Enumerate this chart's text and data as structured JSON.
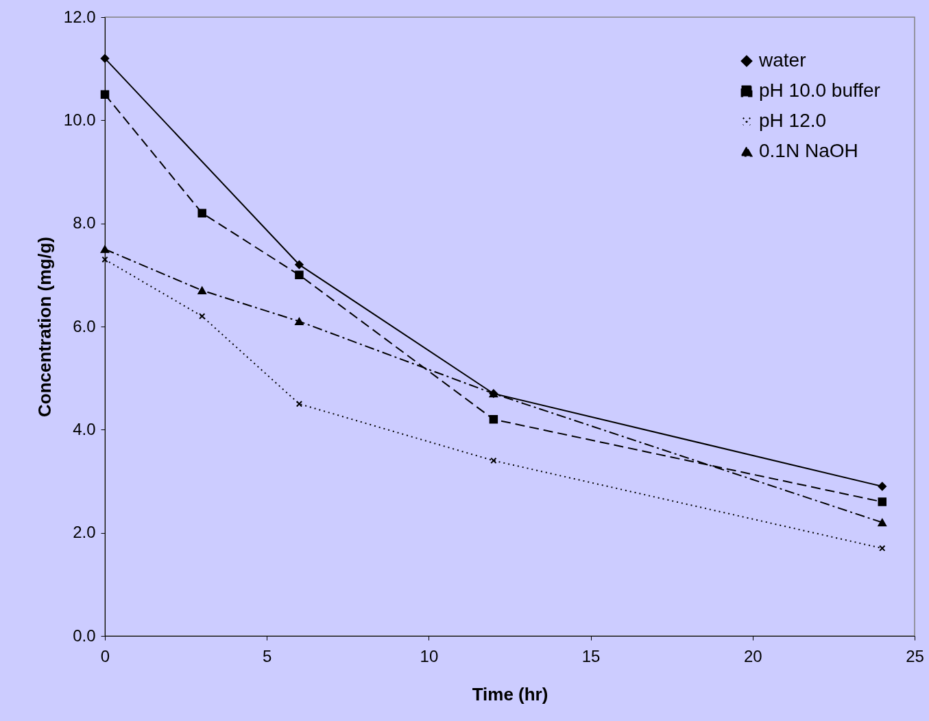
{
  "chart_data": {
    "type": "line",
    "xlabel": "Time (hr)",
    "ylabel": "Concentration (mg/g)",
    "xlim": [
      0,
      25
    ],
    "xticks": [
      0,
      5,
      10,
      15,
      20,
      25
    ],
    "ylim": [
      0,
      12
    ],
    "yticks": [
      {
        "value": 0,
        "label": "0.0"
      },
      {
        "value": 2,
        "label": "2.0"
      },
      {
        "value": 4,
        "label": "4.0"
      },
      {
        "value": 6,
        "label": "6.0"
      },
      {
        "value": 8,
        "label": "8.0"
      },
      {
        "value": 10,
        "label": "10.0"
      },
      {
        "value": 12,
        "label": "12.0"
      }
    ],
    "grid": false,
    "legend": "top right",
    "series": [
      {
        "name": "water",
        "color": "#000000",
        "marker": "diamond",
        "line_style": "solid",
        "x": [
          0,
          6,
          12,
          24
        ],
        "values": [
          11.2,
          7.2,
          4.7,
          2.9
        ]
      },
      {
        "name": "pH 10.0 buffer",
        "color": "#000000",
        "marker": "square",
        "line_style": "dashed",
        "x": [
          0,
          3,
          6,
          12,
          24
        ],
        "values": [
          10.5,
          8.2,
          7.0,
          4.2,
          2.6
        ]
      },
      {
        "name": "pH 12.0",
        "color": "#000000",
        "marker": "cross",
        "line_style": "dotted",
        "x": [
          0,
          3,
          6,
          12,
          24
        ],
        "values": [
          7.3,
          6.2,
          4.5,
          3.4,
          1.7
        ]
      },
      {
        "name": "0.1N NaOH",
        "color": "#000000",
        "marker": "triangle",
        "line_style": "dashdot",
        "x": [
          0,
          3,
          6,
          12,
          24
        ],
        "values": [
          7.5,
          6.7,
          6.1,
          4.7,
          2.2
        ]
      }
    ]
  }
}
